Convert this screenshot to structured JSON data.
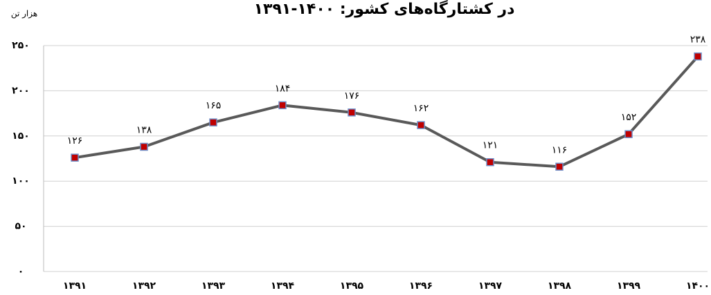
{
  "chart_data": {
    "type": "line",
    "title": "در کشتارگاه‌های کشور: ۱۴۰۰-۱۳۹۱",
    "y_label": "هزار تن",
    "categories": [
      "۱۳۹۱",
      "۱۳۹۲",
      "۱۳۹۳",
      "۱۳۹۴",
      "۱۳۹۵",
      "۱۳۹۶",
      "۱۳۹۷",
      "۱۳۹۸",
      "۱۳۹۹",
      "۱۴۰۰"
    ],
    "values": [
      126,
      138,
      165,
      184,
      176,
      162,
      121,
      116,
      152,
      238
    ],
    "value_labels": [
      "۱۲۶",
      "۱۳۸",
      "۱۶۵",
      "۱۸۴",
      "۱۷۶",
      "۱۶۲",
      "۱۲۱",
      "۱۱۶",
      "۱۵۲",
      "۲۳۸"
    ],
    "color": "#595959",
    "marker_color": "#c00000",
    "ylim": [
      0,
      250
    ],
    "yticks": [
      {
        "value": 0,
        "label": "۰"
      },
      {
        "value": 50,
        "label": "۵۰"
      },
      {
        "value": 100,
        "label": "۱۰۰"
      },
      {
        "value": 150,
        "label": "۱۵۰"
      },
      {
        "value": 200,
        "label": "۲۰۰"
      },
      {
        "value": 250,
        "label": "۲۵۰"
      }
    ],
    "grid": true
  }
}
